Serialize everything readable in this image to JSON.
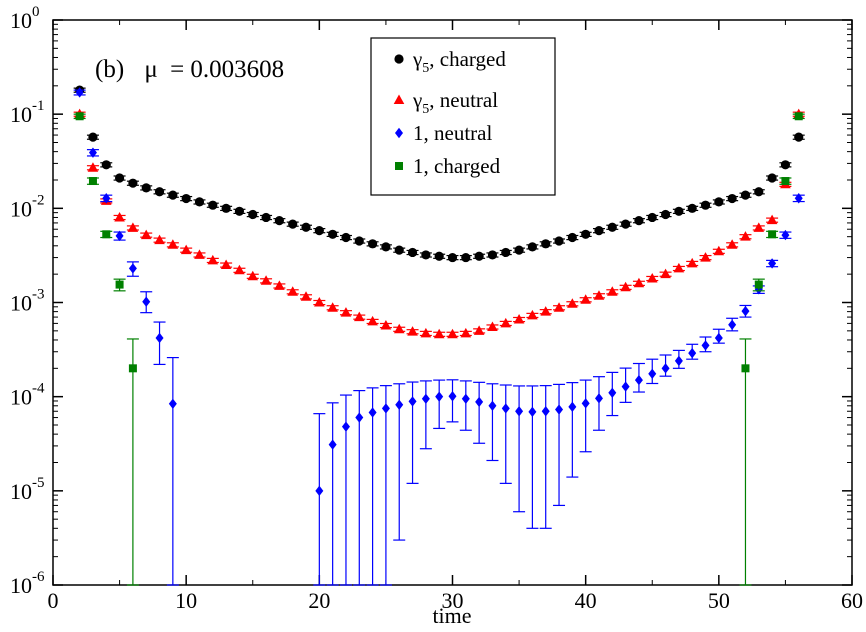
{
  "chart_data": {
    "type": "scatter",
    "title": "",
    "annotation": {
      "label": "(b)",
      "mu_symbol": "μ",
      "mu_value": "= 0.003608"
    },
    "xlabel": "time",
    "ylabel": "",
    "xlim": [
      0,
      60
    ],
    "ylim_log10": [
      -6,
      0
    ],
    "yscale": "log",
    "x_ticks": [
      "0",
      "10",
      "20",
      "30",
      "40",
      "50",
      "60"
    ],
    "y_ticks": [
      {
        "base": "10",
        "exp": "-6"
      },
      {
        "base": "10",
        "exp": "-5"
      },
      {
        "base": "10",
        "exp": "-4"
      },
      {
        "base": "10",
        "exp": "-3"
      },
      {
        "base": "10",
        "exp": "-2"
      },
      {
        "base": "10",
        "exp": "-1"
      },
      {
        "base": "10",
        "exp": "0"
      }
    ],
    "grid": false,
    "legend_position": "top-center",
    "series": [
      {
        "name_main": "γ",
        "name_sub": "5",
        "name_rest": ", charged",
        "color": "#000000",
        "marker": "circle",
        "x": [
          2,
          3,
          4,
          5,
          6,
          7,
          8,
          9,
          10,
          11,
          12,
          13,
          14,
          15,
          16,
          17,
          18,
          19,
          20,
          21,
          22,
          23,
          24,
          25,
          26,
          27,
          28,
          29,
          30,
          31,
          32,
          33,
          34,
          35,
          36,
          37,
          38,
          39,
          40,
          41,
          42,
          43,
          44,
          45,
          46,
          47,
          48,
          49,
          50,
          51,
          52,
          53,
          54,
          55,
          56
        ],
        "y": [
          0.18,
          0.057,
          0.029,
          0.021,
          0.0185,
          0.0165,
          0.015,
          0.0138,
          0.0127,
          0.0117,
          0.0108,
          0.01,
          0.0093,
          0.0086,
          0.008,
          0.0074,
          0.0068,
          0.0063,
          0.0058,
          0.0053,
          0.0049,
          0.0045,
          0.0042,
          0.0039,
          0.0036,
          0.0034,
          0.0032,
          0.0031,
          0.003,
          0.003,
          0.0031,
          0.0032,
          0.0034,
          0.0036,
          0.0039,
          0.0042,
          0.0045,
          0.0049,
          0.0053,
          0.0058,
          0.0063,
          0.0068,
          0.0074,
          0.008,
          0.0086,
          0.0093,
          0.01,
          0.0108,
          0.0117,
          0.0127,
          0.0138,
          0.015,
          0.021,
          0.029,
          0.057
        ],
        "err_rel": [
          0.05,
          0.05,
          0.05,
          0.05,
          0.05,
          0.05,
          0.05,
          0.05,
          0.05,
          0.05,
          0.05,
          0.05,
          0.05,
          0.05,
          0.05,
          0.05,
          0.05,
          0.05,
          0.05,
          0.05,
          0.05,
          0.05,
          0.05,
          0.05,
          0.05,
          0.05,
          0.05,
          0.05,
          0.05,
          0.05,
          0.05,
          0.05,
          0.05,
          0.05,
          0.05,
          0.05,
          0.05,
          0.05,
          0.05,
          0.05,
          0.05,
          0.05,
          0.05,
          0.05,
          0.05,
          0.05,
          0.05,
          0.05,
          0.05,
          0.05,
          0.05,
          0.05,
          0.05,
          0.05,
          0.05
        ]
      },
      {
        "name_main": "γ",
        "name_sub": "5",
        "name_rest": ", neutral",
        "color": "#ff0000",
        "marker": "triangle",
        "x": [
          2,
          3,
          4,
          5,
          6,
          7,
          8,
          9,
          10,
          11,
          12,
          13,
          14,
          15,
          16,
          17,
          18,
          19,
          20,
          21,
          22,
          23,
          24,
          25,
          26,
          27,
          28,
          29,
          30,
          31,
          32,
          33,
          34,
          35,
          36,
          37,
          38,
          39,
          40,
          41,
          42,
          43,
          44,
          45,
          46,
          47,
          48,
          49,
          50,
          51,
          52,
          53,
          54,
          55,
          56
        ],
        "y": [
          0.1,
          0.027,
          0.012,
          0.008,
          0.0062,
          0.0052,
          0.0046,
          0.0041,
          0.0036,
          0.0032,
          0.0028,
          0.0025,
          0.0022,
          0.0019,
          0.0017,
          0.0015,
          0.0013,
          0.00115,
          0.001,
          0.00088,
          0.00078,
          0.0007,
          0.00063,
          0.00057,
          0.00052,
          0.00049,
          0.00047,
          0.00046,
          0.00046,
          0.00047,
          0.0005,
          0.00055,
          0.0006,
          0.00066,
          0.00073,
          0.0008,
          0.00088,
          0.00097,
          0.00107,
          0.00118,
          0.0013,
          0.00145,
          0.0016,
          0.0018,
          0.002,
          0.0023,
          0.0026,
          0.003,
          0.0035,
          0.0041,
          0.005,
          0.0062,
          0.0075,
          0.018,
          0.1
        ],
        "err_rel": [
          0.05,
          0.05,
          0.05,
          0.05,
          0.05,
          0.05,
          0.05,
          0.05,
          0.05,
          0.05,
          0.05,
          0.05,
          0.05,
          0.05,
          0.05,
          0.05,
          0.05,
          0.05,
          0.05,
          0.05,
          0.05,
          0.05,
          0.05,
          0.05,
          0.05,
          0.05,
          0.05,
          0.05,
          0.05,
          0.05,
          0.05,
          0.05,
          0.05,
          0.05,
          0.05,
          0.05,
          0.05,
          0.05,
          0.05,
          0.05,
          0.05,
          0.05,
          0.05,
          0.05,
          0.05,
          0.05,
          0.05,
          0.05,
          0.05,
          0.05,
          0.05,
          0.05,
          0.05,
          0.05,
          0.05
        ]
      },
      {
        "name_main": "1, neutral",
        "name_sub": "",
        "name_rest": "",
        "color": "#0000ff",
        "marker": "diamond",
        "x": [
          2,
          3,
          4,
          5,
          6,
          7,
          8,
          9,
          20,
          21,
          22,
          23,
          24,
          25,
          26,
          27,
          28,
          29,
          30,
          31,
          32,
          33,
          34,
          35,
          36,
          37,
          38,
          39,
          40,
          41,
          42,
          43,
          44,
          45,
          46,
          47,
          48,
          49,
          50,
          51,
          52,
          53,
          54,
          55,
          56
        ],
        "y": [
          0.17,
          0.039,
          0.0128,
          0.0051,
          0.0023,
          0.00102,
          0.00042,
          8.4e-05,
          1e-05,
          3.1e-05,
          4.8e-05,
          6e-05,
          6.8e-05,
          7.5e-05,
          8.2e-05,
          8.9e-05,
          9.5e-05,
          0.0001,
          0.000101,
          9.5e-05,
          8.8e-05,
          8e-05,
          7.5e-05,
          7e-05,
          6.9e-05,
          7e-05,
          7.3e-05,
          7.8e-05,
          8.5e-05,
          9.6e-05,
          0.00011,
          0.000128,
          0.00015,
          0.000175,
          0.0002,
          0.00024,
          0.00029,
          0.00035,
          0.00042,
          0.00058,
          0.00081,
          0.00138,
          0.0026,
          0.0052,
          0.0128
        ],
        "err_lo": [
          0.16,
          0.036,
          0.0118,
          0.0046,
          0.0019,
          0.00078,
          0.00022,
          1e-06,
          1e-06,
          1e-06,
          1e-06,
          1e-06,
          1e-06,
          1e-06,
          3e-06,
          1.2e-05,
          2.8e-05,
          4.6e-05,
          5.4e-05,
          4.4e-05,
          3.2e-05,
          2.1e-05,
          1.2e-05,
          6e-06,
          4e-06,
          4e-06,
          7e-06,
          1.4e-05,
          2.6e-05,
          4.4e-05,
          6.3e-05,
          8.7e-05,
          0.000112,
          0.000138,
          0.000165,
          0.0002,
          0.00025,
          0.0003,
          0.00037,
          0.0005,
          0.0007,
          0.00125,
          0.0024,
          0.0048,
          0.0118
        ],
        "err_hi": [
          0.18,
          0.042,
          0.0138,
          0.0056,
          0.0027,
          0.0013,
          0.00062,
          0.00026,
          6.6e-05,
          8.6e-05,
          0.000104,
          0.000116,
          0.000124,
          0.000131,
          0.000137,
          0.000143,
          0.000147,
          0.00015,
          0.000151,
          0.000147,
          0.000142,
          0.000137,
          0.000133,
          0.00013,
          0.00013,
          0.000131,
          0.000135,
          0.000141,
          0.00015,
          0.000163,
          0.000181,
          0.000201,
          0.000225,
          0.00025,
          0.000277,
          0.00031,
          0.00036,
          0.00043,
          0.00052,
          0.00068,
          0.00093,
          0.0015,
          0.0028,
          0.0056,
          0.0138
        ]
      },
      {
        "name_main": "1, charged",
        "name_sub": "",
        "name_rest": "",
        "color": "#008000",
        "marker": "square",
        "x": [
          2,
          3,
          4,
          5,
          6,
          52,
          53,
          54,
          55,
          56
        ],
        "y": [
          0.095,
          0.0195,
          0.0053,
          0.00155,
          0.0002,
          0.0002,
          0.00155,
          0.0053,
          0.0195,
          0.095
        ],
        "err_lo": [
          0.09,
          0.018,
          0.0049,
          0.00133,
          1e-06,
          1e-06,
          0.00133,
          0.0049,
          0.018,
          0.09
        ],
        "err_hi": [
          0.1,
          0.021,
          0.0057,
          0.00177,
          0.00041,
          0.00041,
          0.00177,
          0.0057,
          0.021,
          0.1
        ]
      }
    ]
  }
}
